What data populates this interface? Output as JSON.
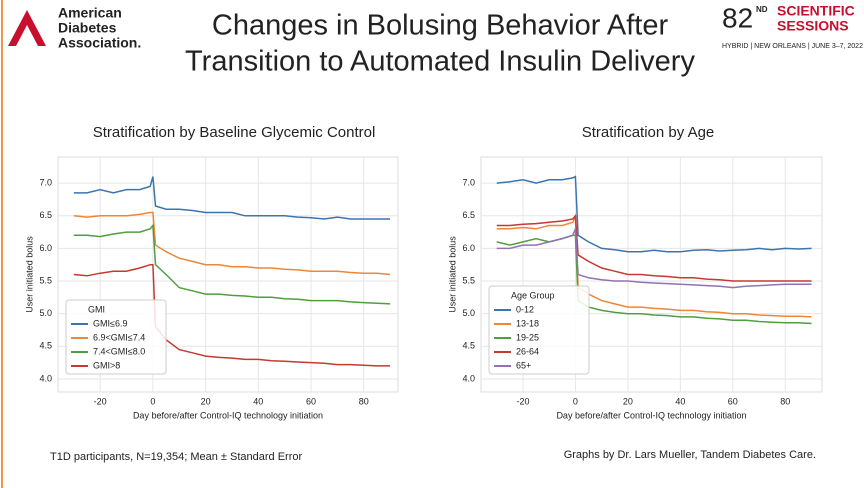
{
  "header": {
    "org_lines": [
      "American",
      "Diabetes",
      "Association."
    ],
    "title_lines": [
      "Changes in Bolusing Behavior After",
      "Transition to Automated Insulin Delivery"
    ],
    "event_number": "82",
    "event_suffix": "ND",
    "event_name_lines": [
      "SCIENTIFIC",
      "SESSIONS"
    ],
    "event_details": "HYBRID | NEW ORLEANS | JUNE 3–7, 2022"
  },
  "chart_data": [
    {
      "type": "line",
      "title": "Stratification by Baseline Glycemic Control",
      "x_label": "Day before/after Control-IQ technology initiation",
      "y_label": "User initiated bolus",
      "x": [
        -30,
        -25,
        -20,
        -15,
        -10,
        -5,
        -1,
        0,
        1,
        5,
        10,
        15,
        20,
        25,
        30,
        35,
        40,
        45,
        50,
        55,
        60,
        65,
        70,
        75,
        80,
        85,
        90
      ],
      "series": [
        {
          "name": "GMI≤6.9",
          "color": "#3b75af",
          "values": [
            6.85,
            6.85,
            6.9,
            6.85,
            6.9,
            6.9,
            6.95,
            7.1,
            6.65,
            6.6,
            6.6,
            6.58,
            6.55,
            6.55,
            6.55,
            6.5,
            6.5,
            6.5,
            6.5,
            6.48,
            6.47,
            6.45,
            6.48,
            6.45,
            6.45,
            6.45,
            6.45
          ]
        },
        {
          "name": "6.9<GMI≤7.4",
          "color": "#ef8636",
          "values": [
            6.5,
            6.48,
            6.5,
            6.5,
            6.5,
            6.52,
            6.55,
            6.55,
            6.05,
            5.95,
            5.85,
            5.8,
            5.75,
            5.75,
            5.72,
            5.72,
            5.7,
            5.7,
            5.68,
            5.67,
            5.65,
            5.65,
            5.65,
            5.63,
            5.62,
            5.62,
            5.6
          ]
        },
        {
          "name": "7.4<GMI≤8.0",
          "color": "#519e3e",
          "values": [
            6.2,
            6.2,
            6.18,
            6.22,
            6.25,
            6.25,
            6.3,
            6.35,
            5.75,
            5.6,
            5.4,
            5.35,
            5.3,
            5.3,
            5.28,
            5.27,
            5.25,
            5.25,
            5.23,
            5.22,
            5.2,
            5.2,
            5.2,
            5.18,
            5.17,
            5.16,
            5.15
          ]
        },
        {
          "name": "GMI>8",
          "color": "#c53932",
          "values": [
            5.6,
            5.58,
            5.62,
            5.65,
            5.65,
            5.7,
            5.75,
            5.75,
            4.8,
            4.6,
            4.45,
            4.4,
            4.35,
            4.33,
            4.32,
            4.3,
            4.3,
            4.28,
            4.27,
            4.26,
            4.25,
            4.24,
            4.22,
            4.22,
            4.21,
            4.2,
            4.2
          ]
        }
      ],
      "legend_title": "GMI",
      "legend": "lower left",
      "grid": true,
      "xlim": [
        -36,
        93
      ],
      "ylim": [
        3.8,
        7.4
      ],
      "xticks": [
        -20,
        0,
        20,
        40,
        60,
        80
      ],
      "yticks": [
        {
          "value": 4,
          "label": "4.0"
        },
        {
          "value": 4.5,
          "label": "4.5"
        },
        {
          "value": 5,
          "label": "5.0"
        },
        {
          "value": 5.5,
          "label": "5.5"
        },
        {
          "value": 6,
          "label": "6.0"
        },
        {
          "value": 6.5,
          "label": "6.5"
        },
        {
          "value": 7,
          "label": "7.0"
        }
      ]
    },
    {
      "type": "line",
      "title": "Stratification by Age",
      "x_label": "Day before/after Control-IQ technology initiation",
      "y_label": "User initiated bolus",
      "x": [
        -30,
        -25,
        -20,
        -15,
        -10,
        -5,
        -1,
        0,
        1,
        5,
        10,
        15,
        20,
        25,
        30,
        35,
        40,
        45,
        50,
        55,
        60,
        65,
        70,
        75,
        80,
        85,
        90
      ],
      "series": [
        {
          "name": "0-12",
          "color": "#3b75af",
          "values": [
            7.0,
            7.02,
            7.05,
            7.0,
            7.05,
            7.05,
            7.08,
            7.1,
            6.2,
            6.1,
            6.0,
            5.98,
            5.95,
            5.95,
            5.97,
            5.95,
            5.95,
            5.97,
            5.98,
            5.96,
            5.97,
            5.98,
            6.0,
            5.98,
            6.0,
            5.99,
            6.0
          ]
        },
        {
          "name": "13-18",
          "color": "#ef8636",
          "values": [
            6.3,
            6.3,
            6.32,
            6.3,
            6.35,
            6.35,
            6.4,
            6.5,
            5.4,
            5.3,
            5.2,
            5.15,
            5.1,
            5.1,
            5.08,
            5.07,
            5.05,
            5.05,
            5.03,
            5.02,
            5.0,
            5.0,
            4.98,
            4.97,
            4.96,
            4.96,
            4.95
          ]
        },
        {
          "name": "19-25",
          "color": "#519e3e",
          "values": [
            6.1,
            6.05,
            6.1,
            6.15,
            6.1,
            6.15,
            6.2,
            6.2,
            5.2,
            5.1,
            5.05,
            5.02,
            5.0,
            5.0,
            4.98,
            4.97,
            4.95,
            4.95,
            4.93,
            4.92,
            4.9,
            4.9,
            4.88,
            4.87,
            4.86,
            4.86,
            4.85
          ]
        },
        {
          "name": "26-64",
          "color": "#c53932",
          "values": [
            6.35,
            6.35,
            6.37,
            6.38,
            6.4,
            6.42,
            6.45,
            6.5,
            5.9,
            5.8,
            5.7,
            5.65,
            5.6,
            5.6,
            5.58,
            5.57,
            5.55,
            5.55,
            5.53,
            5.52,
            5.5,
            5.5,
            5.5,
            5.5,
            5.5,
            5.5,
            5.5
          ]
        },
        {
          "name": "65+",
          "color": "#9372b2",
          "values": [
            6.0,
            6.0,
            6.05,
            6.05,
            6.1,
            6.15,
            6.2,
            6.3,
            5.6,
            5.55,
            5.52,
            5.5,
            5.5,
            5.48,
            5.47,
            5.46,
            5.45,
            5.44,
            5.43,
            5.42,
            5.4,
            5.42,
            5.43,
            5.44,
            5.45,
            5.45,
            5.45
          ]
        }
      ],
      "legend_title": "Age Group",
      "legend": "lower left",
      "grid": true,
      "xlim": [
        -36,
        94
      ],
      "ylim": [
        3.8,
        7.4
      ],
      "xticks": [
        -20,
        0,
        20,
        40,
        60,
        80
      ],
      "yticks": [
        {
          "value": 4,
          "label": "4.0"
        },
        {
          "value": 4.5,
          "label": "4.5"
        },
        {
          "value": 5,
          "label": "5.0"
        },
        {
          "value": 5.5,
          "label": "5.5"
        },
        {
          "value": 6,
          "label": "6.0"
        },
        {
          "value": 6.5,
          "label": "6.5"
        },
        {
          "value": 7,
          "label": "7.0"
        }
      ]
    }
  ],
  "footer": {
    "left": "T1D participants, N=19,354; Mean ± Standard Error",
    "right": "Graphs by Dr. Lars Mueller, Tandem Diabetes Care."
  }
}
